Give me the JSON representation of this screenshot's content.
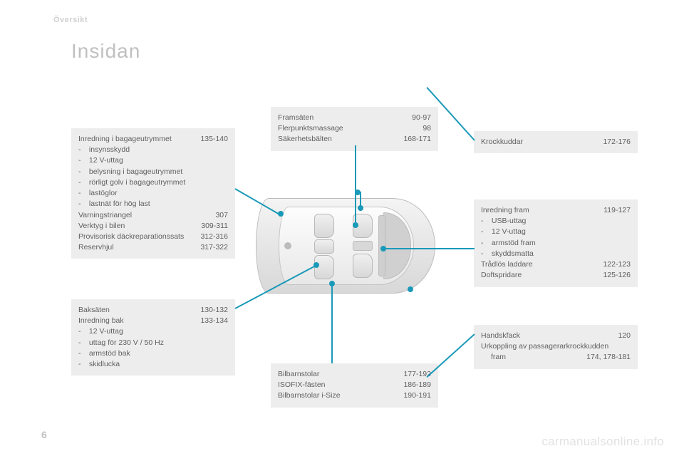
{
  "accent_color": "#1a99b8",
  "box_bg": "#ededed",
  "text_color": "#606060",
  "header": {
    "section": "Översikt",
    "title": "Insidan",
    "page_number": "6"
  },
  "watermark": "carmanualsonline.info",
  "boxes": {
    "trunk": {
      "items": [
        {
          "label": "Inredning i bagageutrymmet",
          "pages": "135-140",
          "sub": [
            "insynsskydd",
            "12 V-uttag",
            "belysning i bagageutrymmet",
            "rörligt golv i bagageutrymmet",
            "lastöglor",
            "lastnät för hög last"
          ]
        },
        {
          "label": "Varningstriangel",
          "pages": "307"
        },
        {
          "label": "Verktyg i bilen",
          "pages": "309-311"
        },
        {
          "label": "Provisorisk däckreparationssats",
          "pages": "312-316"
        },
        {
          "label": "Reservhjul",
          "pages": "317-322"
        }
      ]
    },
    "rear": {
      "items": [
        {
          "label": "Baksäten",
          "pages": "130-132"
        },
        {
          "label": "Inredning bak",
          "pages": "133-134",
          "sub": [
            "12 V-uttag",
            "uttag för 230 V / 50 Hz",
            "armstöd bak",
            "skidlucka"
          ]
        }
      ]
    },
    "front": {
      "items": [
        {
          "label": "Framsäten",
          "pages": "90-97"
        },
        {
          "label": "Flerpunktsmassage",
          "pages": "98"
        },
        {
          "label": "Säkerhetsbälten",
          "pages": "168-171"
        }
      ]
    },
    "airbag": {
      "items": [
        {
          "label": "Krockkuddar",
          "pages": "172-176"
        }
      ]
    },
    "frontint": {
      "items": [
        {
          "label": "Inredning fram",
          "pages": "119-127",
          "sub": [
            "USB-uttag",
            "12 V-uttag",
            "armstöd fram",
            "skyddsmatta"
          ]
        },
        {
          "label": "Trådlös laddare",
          "pages": "122-123"
        },
        {
          "label": "Doftspridare",
          "pages": "125-126"
        }
      ]
    },
    "glove": {
      "items": [
        {
          "label": "Handskfack",
          "pages": "120"
        },
        {
          "label": "Urkoppling av passagerarkrockkudden fram",
          "pages": "174, 178-181",
          "wrap": true
        }
      ]
    },
    "childseat": {
      "items": [
        {
          "label": "Bilbarnstolar",
          "pages": "177-192"
        },
        {
          "label": "ISOFIX-fästen",
          "pages": "186-189"
        },
        {
          "label": "Bilbarnstolar i-Size",
          "pages": "190-191"
        }
      ]
    }
  }
}
